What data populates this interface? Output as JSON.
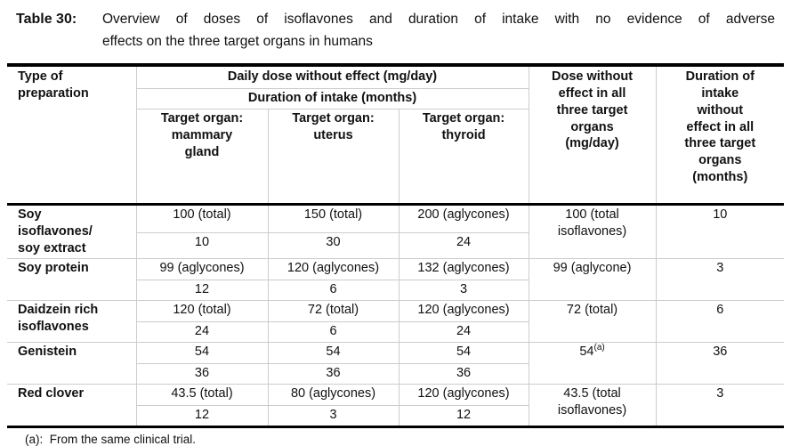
{
  "page": {
    "background": "#ffffff",
    "thin_border_color": "#cccccc",
    "thick_border_color": "#000000"
  },
  "caption": {
    "label": "Table 30:",
    "line1": "Overview of doses of isoflavones and duration of intake with no evidence of adverse",
    "line2": "effects on the three target organs in humans"
  },
  "table": {
    "header": {
      "preparation": "Type of\npreparation",
      "daily_dose_group": "Daily dose without effect (mg/day)",
      "duration_group": "Duration of intake (months)",
      "organ_mammary": "Target organ:\nmammary\ngland",
      "organ_uterus": "Target organ:\nuterus",
      "organ_thyroid": "Target organ:\nthyroid",
      "all_three_dose": "Dose without\neffect in all\nthree target\norgans\n(mg/day)",
      "all_three_duration": "Duration of\nintake\nwithout\neffect in all\nthree target\norgans\n(months)"
    },
    "rows": [
      {
        "preparation": "Soy\nisoflavones/\nsoy extract",
        "mammary_dose": "100 (total)",
        "mammary_months": "10",
        "uterus_dose": "150 (total)",
        "uterus_months": "30",
        "thyroid_dose": "200 (aglycones)",
        "thyroid_months": "24",
        "all_three_dose": "100 (total\nisoflavones)",
        "all_three_sup": "",
        "all_three_months": "10"
      },
      {
        "preparation": "Soy protein",
        "mammary_dose": "99 (aglycones)",
        "mammary_months": "12",
        "uterus_dose": "120 (aglycones)",
        "uterus_months": "6",
        "thyroid_dose": "132 (aglycones)",
        "thyroid_months": "3",
        "all_three_dose": "99 (aglycone)",
        "all_three_sup": "",
        "all_three_months": "3"
      },
      {
        "preparation": "Daidzein rich\nisoflavones",
        "mammary_dose": "120 (total)",
        "mammary_months": "24",
        "uterus_dose": "72 (total)",
        "uterus_months": "6",
        "thyroid_dose": "120 (aglycones)",
        "thyroid_months": "24",
        "all_three_dose": "72 (total)",
        "all_three_sup": "",
        "all_three_months": "6"
      },
      {
        "preparation": "Genistein",
        "mammary_dose": "54",
        "mammary_months": "36",
        "uterus_dose": "54",
        "uterus_months": "36",
        "thyroid_dose": "54",
        "thyroid_months": "36",
        "all_three_dose": "54",
        "all_three_sup": "(a)",
        "all_three_months": "36"
      },
      {
        "preparation": "Red clover",
        "mammary_dose": "43.5 (total)",
        "mammary_months": "12",
        "uterus_dose": "80 (aglycones)",
        "uterus_months": "3",
        "thyroid_dose": "120 (aglycones)",
        "thyroid_months": "12",
        "all_three_dose": "43.5 (total\nisoflavones)",
        "all_three_sup": "",
        "all_three_months": "3"
      }
    ]
  },
  "footnote": "(a):  From the same clinical trial."
}
